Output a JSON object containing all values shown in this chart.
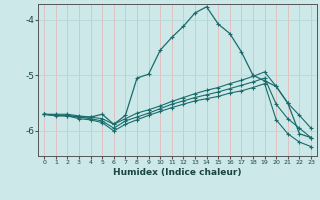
{
  "xlabel": "Humidex (Indice chaleur)",
  "bg_color": "#cce8e8",
  "line_color": "#1a6b6b",
  "hgrid_color": "#b8d8d8",
  "vgrid_color": "#e8b0b0",
  "xlim": [
    -0.5,
    23.5
  ],
  "ylim": [
    -6.45,
    -3.72
  ],
  "yticks": [
    -6,
    -5,
    -4
  ],
  "xticks": [
    0,
    1,
    2,
    3,
    4,
    5,
    6,
    7,
    8,
    9,
    10,
    11,
    12,
    13,
    14,
    15,
    16,
    17,
    18,
    19,
    20,
    21,
    22,
    23
  ],
  "line1_x": [
    0,
    1,
    2,
    3,
    4,
    5,
    6,
    7,
    8,
    9,
    10,
    11,
    12,
    13,
    14,
    15,
    16,
    17,
    18,
    19,
    20,
    21,
    22,
    23
  ],
  "line1_y": [
    -5.7,
    -5.73,
    -5.73,
    -5.78,
    -5.8,
    -5.85,
    -6.0,
    -5.88,
    -5.8,
    -5.72,
    -5.65,
    -5.58,
    -5.52,
    -5.46,
    -5.42,
    -5.38,
    -5.32,
    -5.28,
    -5.22,
    -5.15,
    -5.8,
    -6.05,
    -6.2,
    -6.28
  ],
  "line2_x": [
    0,
    1,
    2,
    3,
    4,
    5,
    6,
    7,
    8,
    9,
    10,
    11,
    12,
    13,
    14,
    15,
    16,
    17,
    18,
    19,
    20,
    21,
    22,
    23
  ],
  "line2_y": [
    -5.7,
    -5.72,
    -5.72,
    -5.75,
    -5.78,
    -5.82,
    -5.95,
    -5.82,
    -5.75,
    -5.68,
    -5.6,
    -5.52,
    -5.46,
    -5.4,
    -5.35,
    -5.3,
    -5.24,
    -5.18,
    -5.12,
    -5.05,
    -5.52,
    -5.78,
    -5.95,
    -6.12
  ],
  "line3_x": [
    0,
    1,
    2,
    3,
    4,
    5,
    6,
    7,
    8,
    9,
    10,
    11,
    12,
    13,
    14,
    15,
    16,
    17,
    18,
    19,
    20,
    21,
    22,
    23
  ],
  "line3_y": [
    -5.7,
    -5.7,
    -5.7,
    -5.73,
    -5.75,
    -5.78,
    -5.88,
    -5.78,
    -5.68,
    -5.62,
    -5.55,
    -5.47,
    -5.4,
    -5.33,
    -5.27,
    -5.22,
    -5.15,
    -5.09,
    -5.02,
    -4.94,
    -5.2,
    -5.5,
    -5.72,
    -5.95
  ],
  "main_x": [
    0,
    1,
    2,
    3,
    4,
    5,
    6,
    7,
    8,
    9,
    10,
    11,
    12,
    13,
    14,
    15,
    16,
    17,
    18,
    19,
    20,
    21,
    22,
    23
  ],
  "main_y": [
    -5.7,
    -5.72,
    -5.73,
    -5.75,
    -5.75,
    -5.7,
    -5.88,
    -5.72,
    -5.05,
    -4.98,
    -4.55,
    -4.32,
    -4.12,
    -3.88,
    -3.77,
    -4.08,
    -4.25,
    -4.58,
    -5.0,
    -5.1,
    -5.2,
    -5.5,
    -6.05,
    -6.12
  ]
}
